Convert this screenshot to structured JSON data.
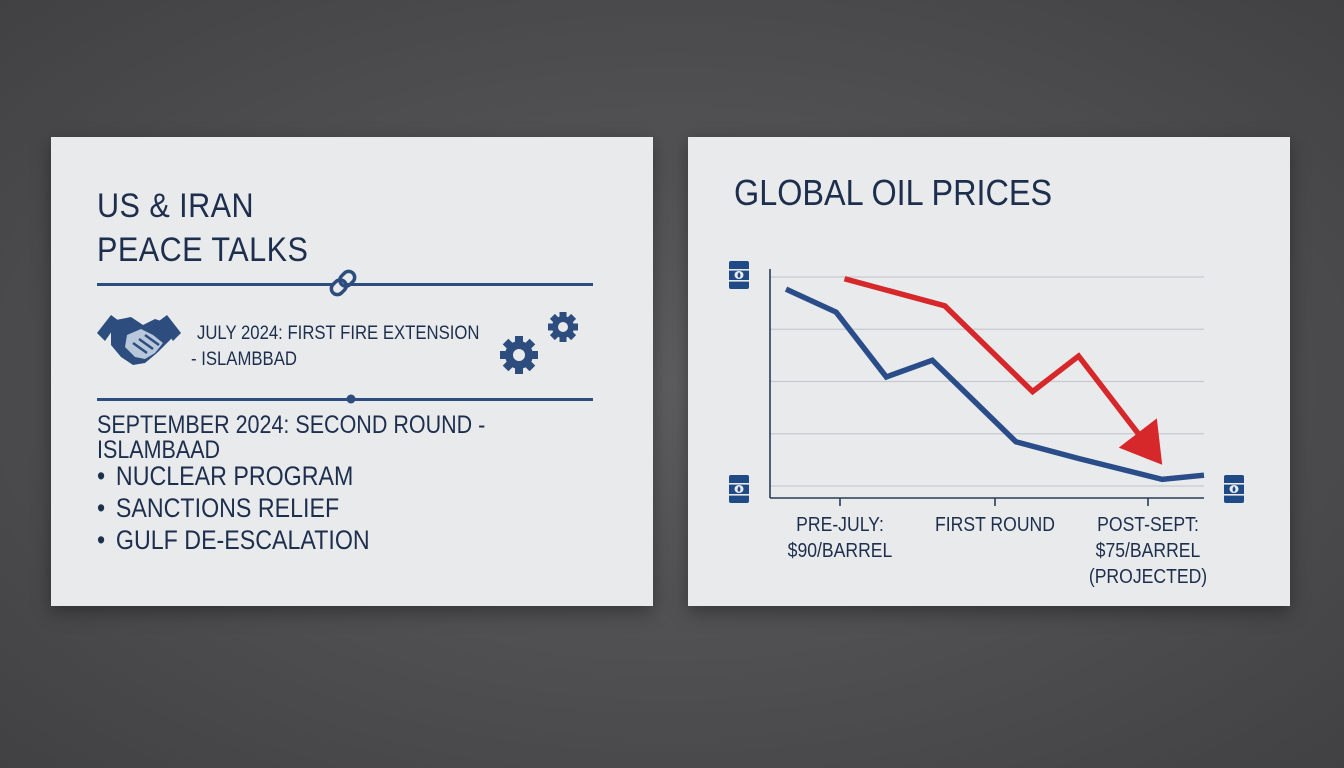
{
  "left_panel": {
    "title_line1": "US & IRAN",
    "title_line2": "PEACE TALKS",
    "event1_line1": "JULY 2024: FIRST FIRE EXTENSION",
    "event1_line2": "- ISLAMBBAD",
    "event2": "SEPTEMBER 2024: SECOND ROUND - ISLAMBAAD",
    "bullets": [
      "NUCLEAR PROGRAM",
      "SANCTIONS RELIEF",
      "GULF DE-ESCALATION"
    ],
    "icons": [
      "handshake-icon",
      "chain-link-icon",
      "gears-icon"
    ]
  },
  "chart_data": {
    "type": "line",
    "title": "GLOBAL OIL PRICES",
    "xlabel": "",
    "ylabel": "",
    "grid": true,
    "categories": [
      "PRE-JULY: $90/BARREL",
      "FIRST ROUND",
      "POST-SEPT: $75/BARREL (PROJECTED)"
    ],
    "x_labels": [
      [
        "PRE-JULY:",
        "$90/BARREL"
      ],
      [
        "FIRST ROUND"
      ],
      [
        "POST-SEPT:",
        "$75/BARREL",
        "(PROJECTED)"
      ]
    ],
    "ylim": [
      0,
      1
    ],
    "series": [
      {
        "color": "#2a4d8a",
        "points": [
          [
            0.0,
            0.98
          ],
          [
            0.12,
            0.87
          ],
          [
            0.24,
            0.56
          ],
          [
            0.35,
            0.64
          ],
          [
            0.55,
            0.25
          ],
          [
            0.7,
            0.17
          ],
          [
            0.9,
            0.07
          ],
          [
            1.0,
            0.09
          ]
        ]
      },
      {
        "color": "#d6282b",
        "points": [
          [
            0.14,
            1.03
          ],
          [
            0.38,
            0.9
          ],
          [
            0.59,
            0.49
          ],
          [
            0.7,
            0.66
          ],
          [
            0.9,
            0.14
          ]
        ],
        "arrow_end": true
      }
    ],
    "y_axis_icons": [
      "oil-barrel-icon",
      "oil-barrel-icon",
      "oil-barrel-icon"
    ]
  },
  "colors": {
    "navy": "#1d2f4d",
    "blue": "#2a4d8a",
    "red": "#d6282b",
    "card": "#e9eaec",
    "background": "#4a4a4c"
  }
}
